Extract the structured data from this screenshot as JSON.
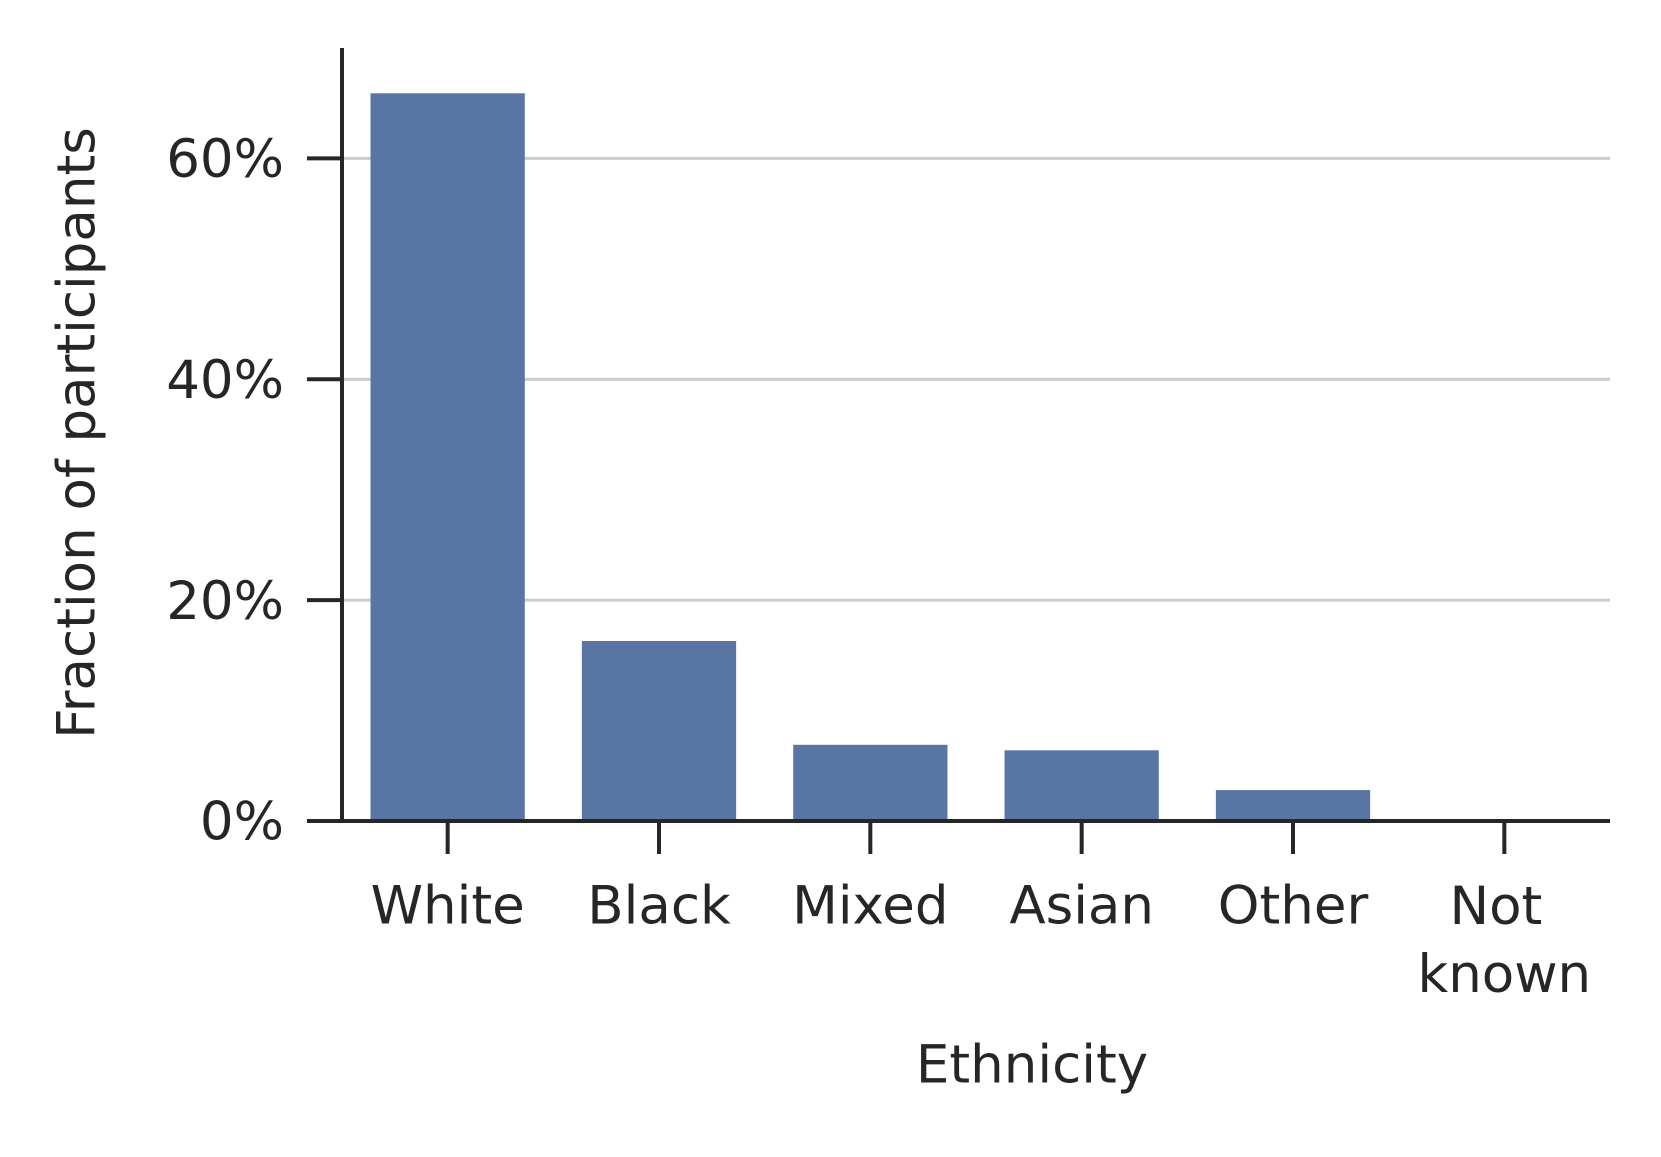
{
  "chart_data": {
    "type": "bar",
    "x_label": "Ethnicity",
    "y_label": "Fraction of participants",
    "categories": [
      "White",
      "Black",
      "Mixed",
      "Asian",
      "Other",
      "Not known"
    ],
    "values": [
      65.9,
      16.3,
      6.9,
      6.4,
      2.8,
      0
    ],
    "color": "#5975a4",
    "ylim": [
      0,
      70
    ],
    "yticks": [
      {
        "value": 0,
        "label": "0%"
      },
      {
        "value": 20,
        "label": "20%"
      },
      {
        "value": 40,
        "label": "40%"
      },
      {
        "value": 60,
        "label": "60%"
      }
    ],
    "grid": true
  }
}
